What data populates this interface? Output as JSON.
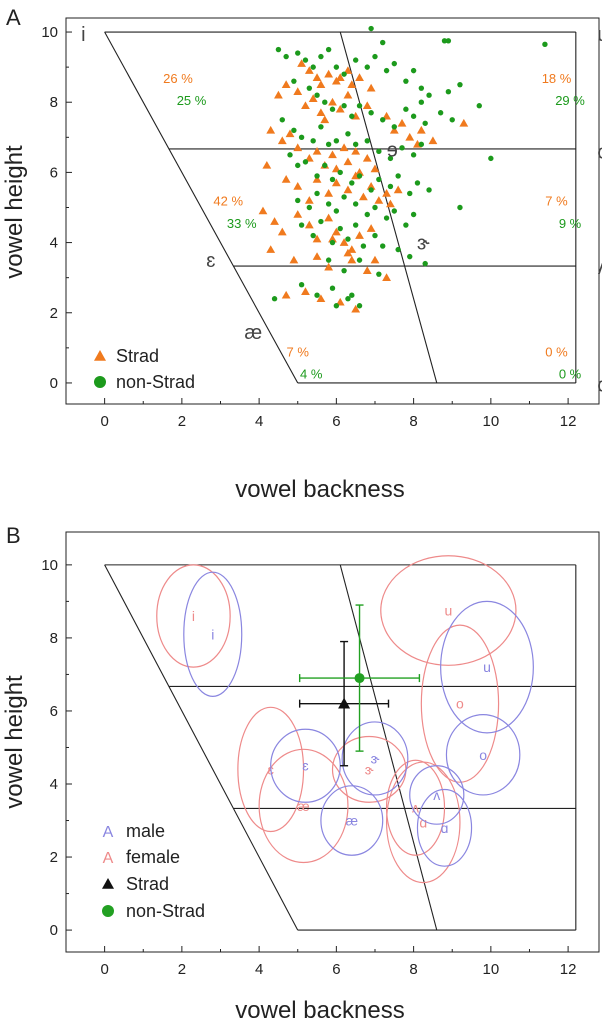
{
  "colors": {
    "strad": "#f07a1e",
    "non_strad": "#1c9a1c",
    "male": "#8a86e0",
    "female": "#ee8a8a",
    "axis": "#222222",
    "strad_mean": "#111111",
    "non_strad_mean": "#22a022"
  },
  "chart_data": [
    {
      "type": "scatter",
      "panel_label": "A",
      "xlabel": "vowel backness",
      "ylabel": "vowel height",
      "xlim": [
        -1,
        12.8
      ],
      "ylim": [
        -0.6,
        10.4
      ],
      "xticks": [
        "0",
        "2",
        "4",
        "6",
        "8",
        "10",
        "12"
      ],
      "yticks": [
        "0",
        "2",
        "4",
        "6",
        "8",
        "10"
      ],
      "corner_vowels": {
        "top_left": "i",
        "top_right": "u",
        "mid_right": "o",
        "low_right_inner": "ʌ",
        "bottom_right": "ɑ",
        "mid_left": "ɛ",
        "low_left": "æ",
        "central_high": "ɘ",
        "central_mid": "ɝ"
      },
      "legend": [
        "Strad",
        "non-Strad"
      ],
      "percentages": {
        "strad": [
          "26 %",
          "18 %",
          "42 %",
          "7 %",
          "7 %",
          "0 %"
        ],
        "non_strad": [
          "25 %",
          "29 %",
          "33 %",
          "9 %",
          "4 %",
          "0 %"
        ]
      },
      "series": [
        {
          "name": "Strad",
          "marker": "triangle",
          "points": [
            [
              5.1,
              9.1
            ],
            [
              5.3,
              8.9
            ],
            [
              5.5,
              8.7
            ],
            [
              5.6,
              8.5
            ],
            [
              5.8,
              8.8
            ],
            [
              6.0,
              8.6
            ],
            [
              6.1,
              8.7
            ],
            [
              6.3,
              8.9
            ],
            [
              6.4,
              8.5
            ],
            [
              6.6,
              8.7
            ],
            [
              4.5,
              8.2
            ],
            [
              4.7,
              8.5
            ],
            [
              5.0,
              8.3
            ],
            [
              5.2,
              7.9
            ],
            [
              5.4,
              8.1
            ],
            [
              5.6,
              7.7
            ],
            [
              5.7,
              7.5
            ],
            [
              5.9,
              8.0
            ],
            [
              6.1,
              7.8
            ],
            [
              6.3,
              8.2
            ],
            [
              6.5,
              7.6
            ],
            [
              6.8,
              7.9
            ],
            [
              6.9,
              8.4
            ],
            [
              7.3,
              7.6
            ],
            [
              7.5,
              7.2
            ],
            [
              7.7,
              7.4
            ],
            [
              7.9,
              7.0
            ],
            [
              8.1,
              6.8
            ],
            [
              8.2,
              7.2
            ],
            [
              8.5,
              6.9
            ],
            [
              9.3,
              7.4
            ],
            [
              4.3,
              7.2
            ],
            [
              4.6,
              6.9
            ],
            [
              4.8,
              7.1
            ],
            [
              5.0,
              6.7
            ],
            [
              5.3,
              6.4
            ],
            [
              5.5,
              6.6
            ],
            [
              5.7,
              6.2
            ],
            [
              5.9,
              6.5
            ],
            [
              6.0,
              6.1
            ],
            [
              6.2,
              6.7
            ],
            [
              6.3,
              6.3
            ],
            [
              6.5,
              6.6
            ],
            [
              6.6,
              6.0
            ],
            [
              6.8,
              6.4
            ],
            [
              7.0,
              6.1
            ],
            [
              4.2,
              6.2
            ],
            [
              4.7,
              5.8
            ],
            [
              5.0,
              5.6
            ],
            [
              5.3,
              5.2
            ],
            [
              5.5,
              5.8
            ],
            [
              5.8,
              5.4
            ],
            [
              6.0,
              5.7
            ],
            [
              6.3,
              5.5
            ],
            [
              6.5,
              5.9
            ],
            [
              6.7,
              5.3
            ],
            [
              6.9,
              5.6
            ],
            [
              7.1,
              5.2
            ],
            [
              7.3,
              5.4
            ],
            [
              7.4,
              5.1
            ],
            [
              7.6,
              5.5
            ],
            [
              4.1,
              4.9
            ],
            [
              4.4,
              4.6
            ],
            [
              4.6,
              4.3
            ],
            [
              5.0,
              4.8
            ],
            [
              5.3,
              4.5
            ],
            [
              5.5,
              4.1
            ],
            [
              5.8,
              4.7
            ],
            [
              6.0,
              4.3
            ],
            [
              6.2,
              4.0
            ],
            [
              6.4,
              3.8
            ],
            [
              6.6,
              4.2
            ],
            [
              6.9,
              4.4
            ],
            [
              4.3,
              3.8
            ],
            [
              4.9,
              3.5
            ],
            [
              5.5,
              3.6
            ],
            [
              5.8,
              3.3
            ],
            [
              6.4,
              3.5
            ],
            [
              6.8,
              3.2
            ],
            [
              7.0,
              3.5
            ],
            [
              7.3,
              3.0
            ],
            [
              4.7,
              2.5
            ],
            [
              5.2,
              2.6
            ],
            [
              5.6,
              2.4
            ],
            [
              6.1,
              2.3
            ],
            [
              6.5,
              2.1
            ],
            [
              6.3,
              3.7
            ],
            [
              5.9,
              4.1
            ]
          ]
        },
        {
          "name": "non-Strad",
          "marker": "circle",
          "points": [
            [
              6.9,
              10.1
            ],
            [
              7.2,
              9.7
            ],
            [
              8.8,
              9.75
            ],
            [
              8.9,
              9.75
            ],
            [
              11.4,
              9.65
            ],
            [
              4.5,
              9.5
            ],
            [
              4.7,
              9.3
            ],
            [
              5.0,
              9.4
            ],
            [
              5.2,
              9.2
            ],
            [
              5.4,
              9.0
            ],
            [
              5.6,
              9.3
            ],
            [
              5.8,
              9.5
            ],
            [
              6.0,
              9.0
            ],
            [
              6.2,
              8.8
            ],
            [
              6.5,
              9.2
            ],
            [
              6.8,
              9.0
            ],
            [
              7.0,
              9.3
            ],
            [
              7.3,
              8.9
            ],
            [
              7.5,
              9.1
            ],
            [
              7.8,
              8.6
            ],
            [
              8.0,
              8.9
            ],
            [
              8.2,
              8.4
            ],
            [
              8.4,
              8.2
            ],
            [
              8.9,
              8.3
            ],
            [
              9.2,
              8.5
            ],
            [
              4.9,
              8.6
            ],
            [
              5.3,
              8.4
            ],
            [
              5.5,
              8.2
            ],
            [
              5.7,
              8.0
            ],
            [
              5.9,
              7.8
            ],
            [
              6.2,
              7.9
            ],
            [
              6.4,
              7.6
            ],
            [
              6.6,
              7.9
            ],
            [
              6.9,
              7.7
            ],
            [
              7.2,
              7.5
            ],
            [
              7.5,
              7.3
            ],
            [
              7.8,
              7.8
            ],
            [
              8.0,
              7.6
            ],
            [
              8.3,
              7.4
            ],
            [
              8.7,
              7.7
            ],
            [
              9.0,
              7.5
            ],
            [
              9.7,
              7.9
            ],
            [
              4.6,
              7.5
            ],
            [
              4.9,
              7.2
            ],
            [
              5.1,
              7.0
            ],
            [
              5.4,
              6.9
            ],
            [
              5.6,
              7.3
            ],
            [
              5.8,
              6.8
            ],
            [
              6.0,
              6.9
            ],
            [
              6.3,
              7.1
            ],
            [
              6.5,
              6.8
            ],
            [
              6.8,
              6.9
            ],
            [
              7.1,
              6.6
            ],
            [
              7.4,
              6.4
            ],
            [
              7.7,
              6.7
            ],
            [
              8.0,
              6.5
            ],
            [
              8.2,
              6.8
            ],
            [
              4.8,
              6.5
            ],
            [
              5.0,
              6.2
            ],
            [
              5.2,
              6.3
            ],
            [
              5.5,
              5.9
            ],
            [
              5.7,
              6.2
            ],
            [
              5.9,
              5.8
            ],
            [
              6.1,
              6.0
            ],
            [
              6.4,
              5.7
            ],
            [
              6.6,
              5.9
            ],
            [
              6.9,
              5.5
            ],
            [
              7.1,
              5.8
            ],
            [
              7.4,
              5.6
            ],
            [
              7.6,
              5.9
            ],
            [
              7.9,
              5.4
            ],
            [
              8.1,
              5.7
            ],
            [
              8.4,
              5.5
            ],
            [
              10.0,
              6.4
            ],
            [
              5.0,
              5.2
            ],
            [
              5.3,
              5.0
            ],
            [
              5.5,
              5.4
            ],
            [
              5.8,
              5.1
            ],
            [
              6.0,
              4.9
            ],
            [
              6.2,
              5.3
            ],
            [
              6.5,
              5.1
            ],
            [
              6.8,
              4.8
            ],
            [
              7.0,
              5.0
            ],
            [
              7.3,
              4.7
            ],
            [
              7.5,
              4.9
            ],
            [
              7.8,
              4.5
            ],
            [
              8.0,
              4.8
            ],
            [
              9.2,
              5.0
            ],
            [
              5.1,
              4.5
            ],
            [
              5.4,
              4.2
            ],
            [
              5.6,
              4.6
            ],
            [
              5.9,
              4.0
            ],
            [
              6.1,
              4.4
            ],
            [
              6.3,
              4.1
            ],
            [
              6.5,
              4.5
            ],
            [
              6.7,
              3.9
            ],
            [
              7.0,
              4.2
            ],
            [
              7.2,
              3.9
            ],
            [
              7.6,
              3.8
            ],
            [
              7.9,
              3.6
            ],
            [
              8.3,
              3.4
            ],
            [
              5.8,
              3.5
            ],
            [
              6.2,
              3.2
            ],
            [
              6.6,
              3.5
            ],
            [
              7.1,
              3.1
            ],
            [
              4.4,
              2.4
            ],
            [
              5.1,
              2.8
            ],
            [
              5.5,
              2.5
            ],
            [
              5.9,
              2.7
            ],
            [
              6.3,
              2.4
            ],
            [
              6.0,
              2.2
            ],
            [
              6.6,
              2.2
            ],
            [
              6.4,
              2.5
            ],
            [
              8.2,
              8.0
            ]
          ]
        }
      ]
    },
    {
      "type": "ellipse-plot",
      "panel_label": "B",
      "xlabel": "vowel backness",
      "ylabel": "vowel height",
      "xlim": [
        -1,
        12.8
      ],
      "ylim": [
        -0.6,
        10.9
      ],
      "xticks": [
        "0",
        "2",
        "4",
        "6",
        "8",
        "10",
        "12"
      ],
      "yticks": [
        "0",
        "2",
        "4",
        "6",
        "8",
        "10"
      ],
      "legend": [
        "male",
        "female",
        "Strad",
        "non-Strad"
      ],
      "legend_markers": [
        "A",
        "A",
        "▲",
        "●"
      ],
      "male_ellipses": [
        {
          "label": "i",
          "cx": 2.8,
          "cy": 8.1,
          "rx": 0.75,
          "ry": 1.7
        },
        {
          "label": "u",
          "cx": 9.9,
          "cy": 7.2,
          "rx": 1.2,
          "ry": 1.8
        },
        {
          "label": "o",
          "cx": 9.8,
          "cy": 4.8,
          "rx": 0.95,
          "ry": 1.1
        },
        {
          "label": "ɛ",
          "cx": 5.2,
          "cy": 4.5,
          "rx": 0.9,
          "ry": 1.0
        },
        {
          "label": "ɝ",
          "cx": 7.0,
          "cy": 4.7,
          "rx": 0.85,
          "ry": 1.0
        },
        {
          "label": "ʌ",
          "cx": 8.6,
          "cy": 3.7,
          "rx": 0.7,
          "ry": 0.8
        },
        {
          "label": "æ",
          "cx": 6.4,
          "cy": 3.0,
          "rx": 0.8,
          "ry": 0.95
        },
        {
          "label": "ɑ",
          "cx": 8.8,
          "cy": 2.8,
          "rx": 0.7,
          "ry": 1.05
        }
      ],
      "female_ellipses": [
        {
          "label": "i",
          "cx": 2.3,
          "cy": 8.6,
          "rx": 0.95,
          "ry": 1.4
        },
        {
          "label": "u",
          "cx": 8.9,
          "cy": 8.75,
          "rx": 1.75,
          "ry": 1.5
        },
        {
          "label": "o",
          "cx": 9.2,
          "cy": 6.2,
          "rx": 1.0,
          "ry": 2.15
        },
        {
          "label": "ɛ",
          "cx": 4.3,
          "cy": 4.4,
          "rx": 0.85,
          "ry": 1.7
        },
        {
          "label": "ɝ",
          "cx": 6.85,
          "cy": 4.4,
          "rx": 0.95,
          "ry": 0.9
        },
        {
          "label": "ʌ",
          "cx": 8.05,
          "cy": 3.35,
          "rx": 0.75,
          "ry": 1.3
        },
        {
          "label": "æ",
          "cx": 5.15,
          "cy": 3.4,
          "rx": 1.15,
          "ry": 1.55
        },
        {
          "label": "ɑ",
          "cx": 8.25,
          "cy": 2.95,
          "rx": 0.95,
          "ry": 1.65
        }
      ],
      "means": [
        {
          "name": "Strad",
          "x": 6.2,
          "y": 6.2,
          "xerr": 1.15,
          "yerr": 1.7
        },
        {
          "name": "non-Strad",
          "x": 6.6,
          "y": 6.9,
          "xerr": 1.55,
          "yerr": 2.0
        }
      ]
    }
  ]
}
